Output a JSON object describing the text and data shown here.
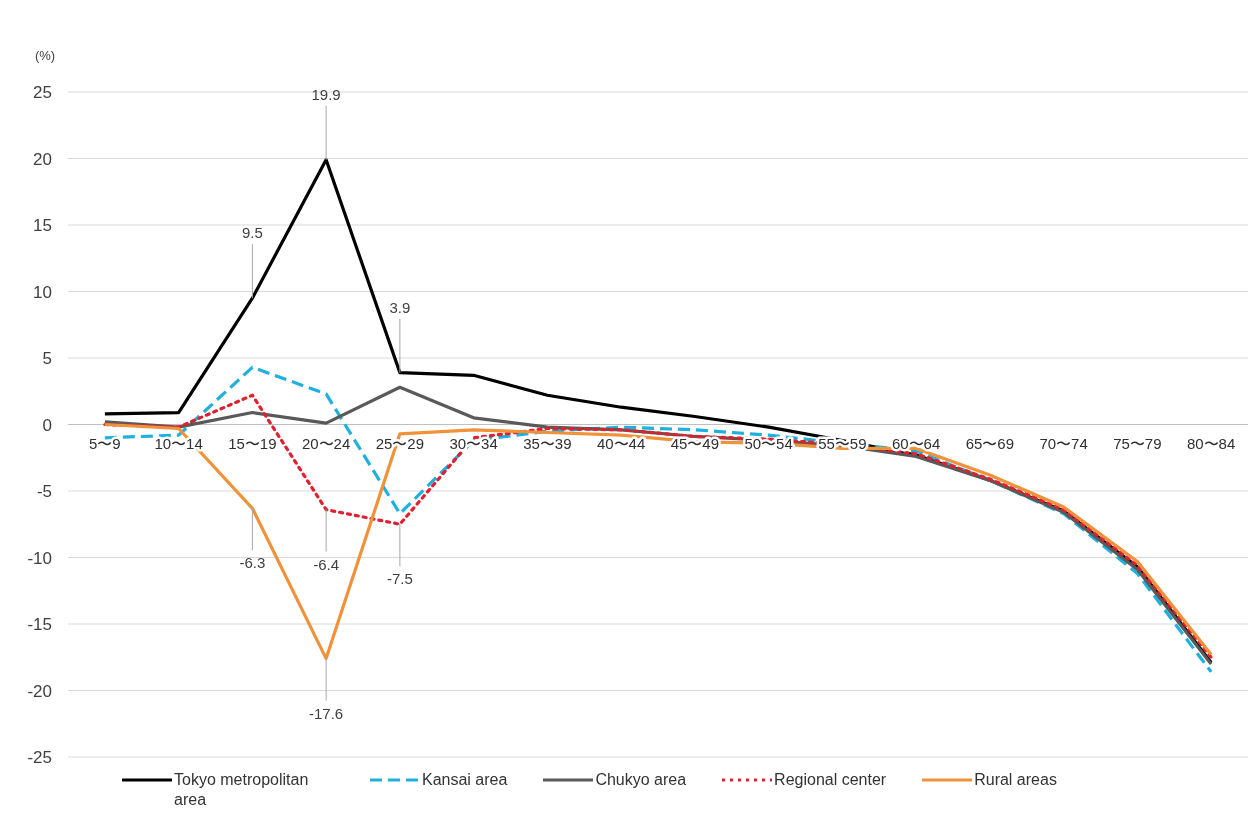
{
  "chart_data": {
    "type": "line",
    "ylabel": "(%)",
    "categories": [
      "5〜9",
      "10〜14",
      "15〜19",
      "20〜24",
      "25〜29",
      "30〜34",
      "35〜39",
      "40〜44",
      "45〜49",
      "50〜54",
      "55〜59",
      "60〜64",
      "65〜69",
      "70〜74",
      "75〜79",
      "80〜84"
    ],
    "series": [
      {
        "name": "Tokyo metropolitan area",
        "color": "#000000",
        "line_style": "solid",
        "values": [
          0.8,
          0.9,
          9.5,
          19.9,
          3.9,
          3.7,
          2.2,
          1.3,
          0.6,
          -0.2,
          -1.2,
          -2.3,
          -4.2,
          -6.5,
          -10.7,
          -17.9
        ]
      },
      {
        "name": "Kansai area",
        "color": "#1fb0e0",
        "line_style": "dashed",
        "values": [
          -1.0,
          -0.8,
          4.3,
          2.3,
          -6.7,
          -1.2,
          -0.5,
          -0.2,
          -0.4,
          -0.8,
          -1.4,
          -2.0,
          -4.2,
          -6.7,
          -11.2,
          -18.6
        ]
      },
      {
        "name": "Chukyo area",
        "color": "#595959",
        "line_style": "solid",
        "values": [
          0.2,
          -0.2,
          0.9,
          0.1,
          2.8,
          0.5,
          -0.2,
          -0.4,
          -0.9,
          -1.2,
          -1.6,
          -2.4,
          -4.2,
          -6.6,
          -10.9,
          -18.0
        ]
      },
      {
        "name": "Regional center",
        "color": "#e0202e",
        "line_style": "dotted",
        "values": [
          0.0,
          -0.2,
          2.2,
          -6.4,
          -7.5,
          -1.0,
          -0.3,
          -0.4,
          -0.9,
          -1.1,
          -1.5,
          -2.2,
          -4.1,
          -6.4,
          -10.6,
          -17.5
        ]
      },
      {
        "name": "Rural areas",
        "color": "#f0923a",
        "line_style": "solid",
        "values": [
          0.0,
          -0.3,
          -6.3,
          -17.6,
          -0.7,
          -0.4,
          -0.6,
          -0.8,
          -1.3,
          -1.4,
          -1.8,
          -1.8,
          -3.8,
          -6.2,
          -10.3,
          -17.3
        ]
      }
    ],
    "ylim": [
      -25,
      25
    ],
    "yticks": [
      -25,
      -20,
      -15,
      -10,
      -5,
      0,
      5,
      10,
      15,
      20,
      25
    ],
    "grid": "y",
    "legend": "bottom",
    "annotations": [
      {
        "text": "19.9",
        "x": "20〜24",
        "y": 19.9
      },
      {
        "text": "9.5",
        "x": "15〜19",
        "y": 9.5
      },
      {
        "text": "3.9",
        "x": "25〜29",
        "y": 3.9
      },
      {
        "text": "-6.3",
        "x": "15〜19",
        "y": -6.3
      },
      {
        "text": "-6.4",
        "x": "20〜24",
        "y": -6.4
      },
      {
        "text": "-7.5",
        "x": "25〜29",
        "y": -7.5
      },
      {
        "text": "-17.6",
        "x": "20〜24",
        "y": -17.6
      }
    ]
  }
}
